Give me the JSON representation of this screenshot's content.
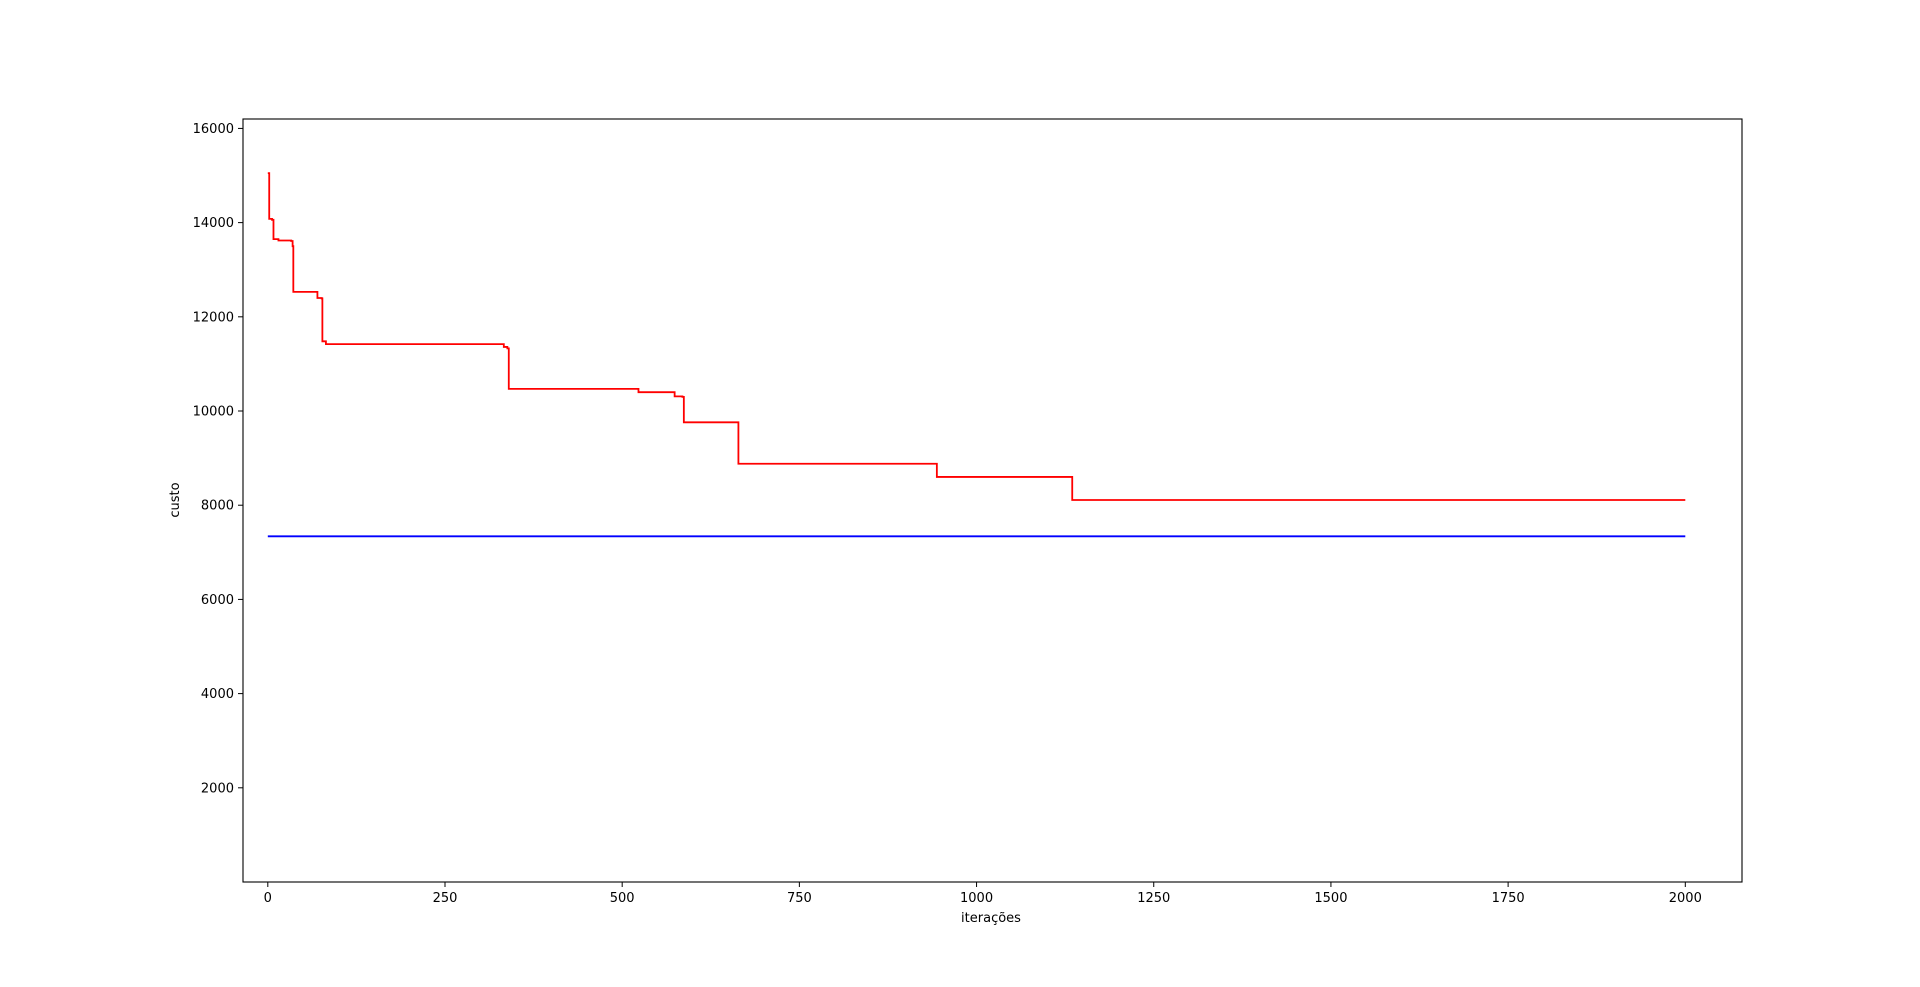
{
  "chart_data": {
    "type": "line",
    "title": "",
    "xlabel": "iterações",
    "ylabel": "custo",
    "xlim": [
      -35,
      2080
    ],
    "ylim": [
      0,
      16200
    ],
    "xticks": [
      0,
      250,
      500,
      750,
      1000,
      1250,
      1500,
      1750,
      2000
    ],
    "yticks": [
      2000,
      4000,
      6000,
      8000,
      10000,
      12000,
      14000,
      16000
    ],
    "grid": false,
    "legend": "none",
    "series": [
      {
        "color": "#ff0000",
        "step": "post",
        "points": [
          [
            0,
            15050
          ],
          [
            2,
            14080
          ],
          [
            6,
            14060
          ],
          [
            8,
            13650
          ],
          [
            15,
            13620
          ],
          [
            33,
            13610
          ],
          [
            35,
            13500
          ],
          [
            36,
            12530
          ],
          [
            68,
            12530
          ],
          [
            70,
            12400
          ],
          [
            76,
            12390
          ],
          [
            77,
            11480
          ],
          [
            82,
            11420
          ],
          [
            330,
            11420
          ],
          [
            333,
            11360
          ],
          [
            338,
            11330
          ],
          [
            340,
            10470
          ],
          [
            520,
            10470
          ],
          [
            523,
            10400
          ],
          [
            572,
            10400
          ],
          [
            574,
            10310
          ],
          [
            585,
            10300
          ],
          [
            587,
            9760
          ],
          [
            662,
            9760
          ],
          [
            664,
            8880
          ],
          [
            942,
            8880
          ],
          [
            944,
            8600
          ],
          [
            1133,
            8600
          ],
          [
            1135,
            8110
          ],
          [
            2000,
            8110
          ]
        ]
      },
      {
        "color": "#0000ff",
        "step": "none",
        "points": [
          [
            0,
            7340
          ],
          [
            2000,
            7340
          ]
        ]
      }
    ]
  }
}
